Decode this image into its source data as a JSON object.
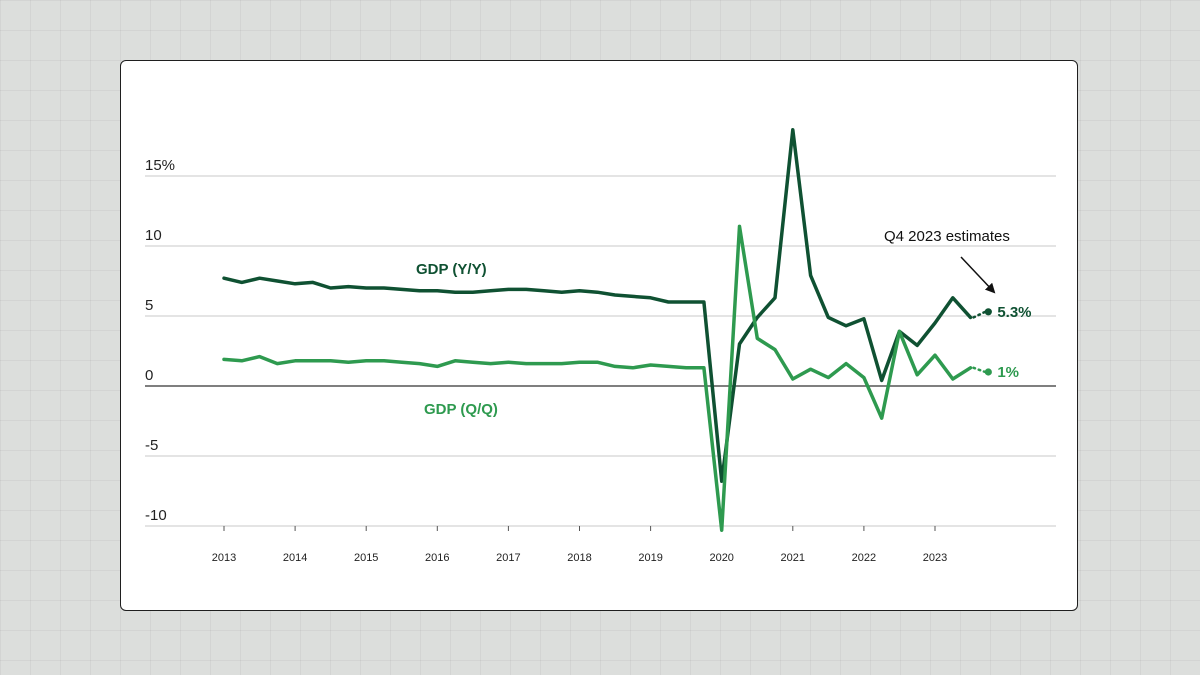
{
  "chart_data": {
    "type": "line",
    "title": "",
    "xlabel": "",
    "ylabel": "",
    "ylim": [
      -10,
      15
    ],
    "yticks": [
      -10,
      -5,
      0,
      5,
      10,
      15
    ],
    "ytick_labels": [
      "-10",
      "-5",
      "0",
      "5",
      "10",
      "15%"
    ],
    "xlim": [
      2013,
      2024.3
    ],
    "xticks": [
      2013,
      2014,
      2015,
      2016,
      2017,
      2018,
      2019,
      2020,
      2021,
      2022,
      2023
    ],
    "xtick_labels": [
      "2013",
      "2014",
      "2015",
      "2016",
      "2017",
      "2018",
      "2019",
      "2020",
      "2021",
      "2022",
      "2023"
    ],
    "grid": "horizontal",
    "legend": "none",
    "series": [
      {
        "name": "GDP (Y/Y)",
        "color": "#0f5132",
        "points": [
          [
            2013.0,
            7.7
          ],
          [
            2013.25,
            7.4
          ],
          [
            2013.5,
            7.7
          ],
          [
            2013.75,
            7.5
          ],
          [
            2014.0,
            7.3
          ],
          [
            2014.25,
            7.4
          ],
          [
            2014.5,
            7.0
          ],
          [
            2014.75,
            7.1
          ],
          [
            2015.0,
            7.0
          ],
          [
            2015.25,
            7.0
          ],
          [
            2015.5,
            6.9
          ],
          [
            2015.75,
            6.8
          ],
          [
            2016.0,
            6.8
          ],
          [
            2016.25,
            6.7
          ],
          [
            2016.5,
            6.7
          ],
          [
            2016.75,
            6.8
          ],
          [
            2017.0,
            6.9
          ],
          [
            2017.25,
            6.9
          ],
          [
            2017.5,
            6.8
          ],
          [
            2017.75,
            6.7
          ],
          [
            2018.0,
            6.8
          ],
          [
            2018.25,
            6.7
          ],
          [
            2018.5,
            6.5
          ],
          [
            2018.75,
            6.4
          ],
          [
            2019.0,
            6.3
          ],
          [
            2019.25,
            6.0
          ],
          [
            2019.5,
            6.0
          ],
          [
            2019.75,
            6.0
          ],
          [
            2020.0,
            -6.8
          ],
          [
            2020.25,
            3.0
          ],
          [
            2020.5,
            4.9
          ],
          [
            2020.75,
            6.3
          ],
          [
            2021.0,
            18.3
          ],
          [
            2021.25,
            7.9
          ],
          [
            2021.5,
            4.9
          ],
          [
            2021.75,
            4.3
          ],
          [
            2022.0,
            4.8
          ],
          [
            2022.25,
            0.4
          ],
          [
            2022.5,
            3.9
          ],
          [
            2022.75,
            2.9
          ],
          [
            2023.0,
            4.5
          ],
          [
            2023.25,
            6.3
          ],
          [
            2023.5,
            4.9
          ]
        ],
        "estimate": {
          "x": 2023.75,
          "y": 5.3,
          "label": "5.3%"
        }
      },
      {
        "name": "GDP (Q/Q)",
        "color": "#2e9a4f",
        "points": [
          [
            2013.0,
            1.9
          ],
          [
            2013.25,
            1.8
          ],
          [
            2013.5,
            2.1
          ],
          [
            2013.75,
            1.6
          ],
          [
            2014.0,
            1.8
          ],
          [
            2014.25,
            1.8
          ],
          [
            2014.5,
            1.8
          ],
          [
            2014.75,
            1.7
          ],
          [
            2015.0,
            1.8
          ],
          [
            2015.25,
            1.8
          ],
          [
            2015.5,
            1.7
          ],
          [
            2015.75,
            1.6
          ],
          [
            2016.0,
            1.4
          ],
          [
            2016.25,
            1.8
          ],
          [
            2016.5,
            1.7
          ],
          [
            2016.75,
            1.6
          ],
          [
            2017.0,
            1.7
          ],
          [
            2017.25,
            1.6
          ],
          [
            2017.5,
            1.6
          ],
          [
            2017.75,
            1.6
          ],
          [
            2018.0,
            1.7
          ],
          [
            2018.25,
            1.7
          ],
          [
            2018.5,
            1.4
          ],
          [
            2018.75,
            1.3
          ],
          [
            2019.0,
            1.5
          ],
          [
            2019.25,
            1.4
          ],
          [
            2019.5,
            1.3
          ],
          [
            2019.75,
            1.3
          ],
          [
            2020.0,
            -10.3
          ],
          [
            2020.25,
            11.4
          ],
          [
            2020.5,
            3.4
          ],
          [
            2020.75,
            2.6
          ],
          [
            2021.0,
            0.5
          ],
          [
            2021.25,
            1.2
          ],
          [
            2021.5,
            0.6
          ],
          [
            2021.75,
            1.6
          ],
          [
            2022.0,
            0.6
          ],
          [
            2022.25,
            -2.3
          ],
          [
            2022.5,
            3.9
          ],
          [
            2022.75,
            0.8
          ],
          [
            2023.0,
            2.2
          ],
          [
            2023.25,
            0.5
          ],
          [
            2023.5,
            1.3
          ]
        ],
        "estimate": {
          "x": 2023.75,
          "y": 1.0,
          "label": "1%"
        }
      }
    ],
    "annotations": [
      {
        "text": "Q4 2023 estimates"
      }
    ]
  }
}
